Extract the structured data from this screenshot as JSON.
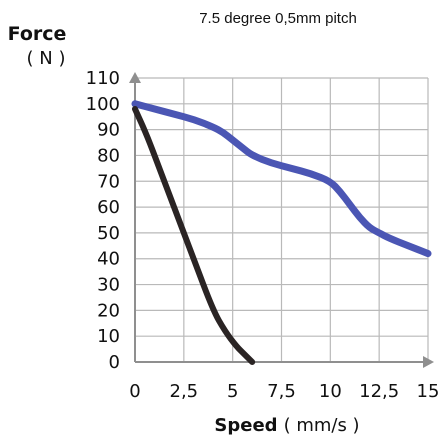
{
  "chart_data": {
    "type": "line",
    "title": "7.5 degree 0,5mm pitch",
    "ylabel": "Force",
    "ylabel_unit": "( N )",
    "xlabel": "Speed",
    "xlabel_unit": "( mm/s )",
    "xlim": [
      0,
      15
    ],
    "ylim": [
      0,
      110
    ],
    "x_ticks": [
      0,
      2.5,
      5,
      7.5,
      10,
      12.5,
      15
    ],
    "x_tick_labels": [
      "0",
      "2,5",
      "5",
      "7,5",
      "10",
      "12,5",
      "15"
    ],
    "y_ticks": [
      0,
      10,
      20,
      30,
      40,
      50,
      60,
      70,
      80,
      90,
      100,
      110
    ],
    "y_tick_labels": [
      "0",
      "10",
      "20",
      "30",
      "40",
      "50",
      "60",
      "70",
      "80",
      "90",
      "100",
      "110"
    ],
    "grid": true,
    "series": [
      {
        "color": "#4b56b4",
        "x": [
          0,
          1,
          2,
          3,
          4,
          4.5,
          5,
          5.5,
          6,
          7,
          8,
          9,
          10,
          10.5,
          11,
          11.5,
          12,
          12.5,
          13,
          14,
          15
        ],
        "y": [
          100,
          98,
          96,
          94,
          91,
          89,
          86,
          83,
          80,
          77,
          75,
          73,
          70,
          66,
          61,
          56,
          52,
          50,
          48,
          45,
          42
        ]
      },
      {
        "color": "#2a2424",
        "x": [
          0,
          0.6,
          1.2,
          2,
          3,
          4,
          4.6,
          5.2,
          5.6,
          6
        ],
        "y": [
          98,
          88,
          76,
          60,
          40,
          20,
          12,
          6,
          3,
          0
        ]
      }
    ]
  }
}
